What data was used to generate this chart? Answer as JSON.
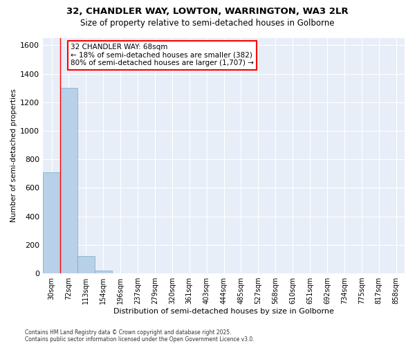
{
  "title_line1": "32, CHANDLER WAY, LOWTON, WARRINGTON, WA3 2LR",
  "title_line2": "Size of property relative to semi-detached houses in Golborne",
  "xlabel": "Distribution of semi-detached houses by size in Golborne",
  "ylabel": "Number of semi-detached properties",
  "categories": [
    "30sqm",
    "72sqm",
    "113sqm",
    "154sqm",
    "196sqm",
    "237sqm",
    "279sqm",
    "320sqm",
    "361sqm",
    "403sqm",
    "444sqm",
    "485sqm",
    "527sqm",
    "568sqm",
    "610sqm",
    "651sqm",
    "692sqm",
    "734sqm",
    "775sqm",
    "817sqm",
    "858sqm"
  ],
  "values": [
    710,
    1300,
    120,
    20,
    0,
    0,
    0,
    0,
    0,
    0,
    0,
    0,
    0,
    0,
    0,
    0,
    0,
    0,
    0,
    0,
    0
  ],
  "bar_color": "#b8d0e8",
  "bar_edgecolor": "#7aaac8",
  "property_line_x": 0.5,
  "ylim": [
    0,
    1650
  ],
  "yticks": [
    0,
    200,
    400,
    600,
    800,
    1000,
    1200,
    1400,
    1600
  ],
  "annotation_title": "32 CHANDLER WAY: 68sqm",
  "annotation_line1": "← 18% of semi-detached houses are smaller (382)",
  "annotation_line2": "80% of semi-detached houses are larger (1,707) →",
  "footer_line1": "Contains HM Land Registry data © Crown copyright and database right 2025.",
  "footer_line2": "Contains public sector information licensed under the Open Government Licence v3.0.",
  "background_color": "#ffffff",
  "plot_bg_color": "#e8eef8"
}
